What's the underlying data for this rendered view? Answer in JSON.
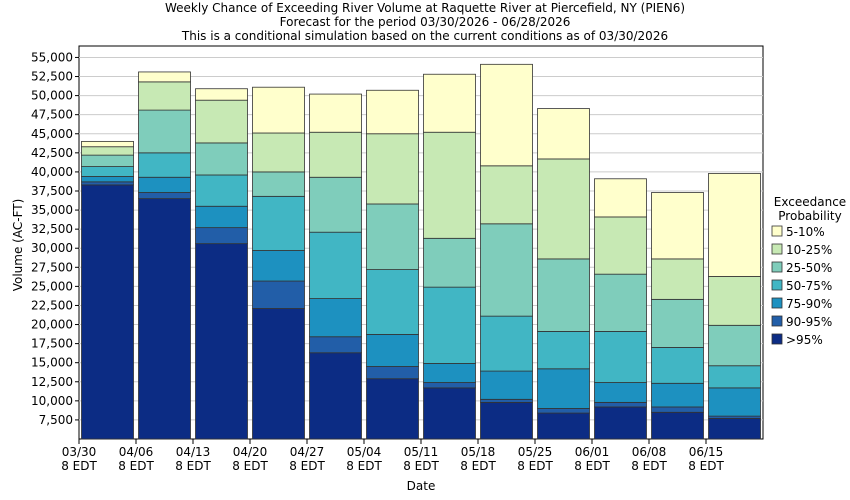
{
  "title": [
    "Weekly Chance of Exceeding River Volume at Raquette River at Piercefield, NY (PIEN6)",
    "Forecast for the period 03/30/2026 - 06/28/2026",
    "This is a conditional simulation based on the current conditions as of 03/30/2026"
  ],
  "chart_data": {
    "type": "bar",
    "stacked": true,
    "xlabel": "Date",
    "ylabel": "Volume (AC-FT)",
    "ylim": [
      5000,
      56500
    ],
    "yticks": [
      7500,
      10000,
      12500,
      15000,
      17500,
      20000,
      22500,
      25000,
      27500,
      30000,
      32500,
      35000,
      37500,
      40000,
      42500,
      45000,
      47500,
      50000,
      52500,
      55000
    ],
    "ytick_labels": [
      "7,500",
      "10,000",
      "12,500",
      "15,000",
      "17,500",
      "20,000",
      "22,500",
      "25,000",
      "27,500",
      "30,000",
      "32,500",
      "35,000",
      "37,500",
      "40,000",
      "42,500",
      "45,000",
      "47,500",
      "50,000",
      "52,500",
      "55,000"
    ],
    "xtick_labels": [
      [
        "03/30",
        "8 EDT"
      ],
      [
        "04/06",
        "8 EDT"
      ],
      [
        "04/13",
        "8 EDT"
      ],
      [
        "04/20",
        "8 EDT"
      ],
      [
        "04/27",
        "8 EDT"
      ],
      [
        "05/04",
        "8 EDT"
      ],
      [
        "05/11",
        "8 EDT"
      ],
      [
        "05/18",
        "8 EDT"
      ],
      [
        "05/25",
        "8 EDT"
      ],
      [
        "06/01",
        "8 EDT"
      ],
      [
        "06/08",
        "8 EDT"
      ],
      [
        "06/15",
        "8 EDT"
      ]
    ],
    "legend": {
      "title": [
        "Exceedance",
        "Probability"
      ],
      "position": "right",
      "entries": [
        "5-10%",
        "10-25%",
        "25-50%",
        "50-75%",
        "75-90%",
        "90-95%",
        ">95%"
      ]
    },
    "colors": [
      "#ffffcc",
      "#c7e9b4",
      "#7fcdbb",
      "#41b6c4",
      "#1d91c0",
      "#225ea8",
      "#0c2c84"
    ],
    "weeks": [
      "03/30",
      "04/06",
      "04/13",
      "04/20",
      "04/27",
      "05/04",
      "05/11",
      "05/18",
      "05/25",
      "06/01",
      "06/08",
      "06/15"
    ],
    "boundaries": [
      [
        5000,
        38300,
        38700,
        39400,
        40700,
        42200,
        43300,
        44000
      ],
      [
        5000,
        36500,
        37300,
        39300,
        42500,
        48100,
        51800,
        53100
      ],
      [
        5000,
        30600,
        32700,
        35500,
        39600,
        43800,
        49400,
        50900
      ],
      [
        5000,
        22100,
        25700,
        29700,
        36800,
        40000,
        45100,
        51100
      ],
      [
        5000,
        16300,
        18400,
        23400,
        32100,
        39300,
        45200,
        50200
      ],
      [
        5000,
        12900,
        14500,
        18700,
        27200,
        35800,
        45000,
        50700
      ],
      [
        5000,
        11700,
        12400,
        14900,
        24900,
        31300,
        45200,
        52800
      ],
      [
        5000,
        9800,
        10200,
        13900,
        21100,
        33200,
        40800,
        54100
      ],
      [
        5000,
        8400,
        9000,
        14200,
        19100,
        28600,
        41700,
        48300
      ],
      [
        5000,
        9200,
        9800,
        12400,
        19100,
        26600,
        34100,
        39100
      ],
      [
        5000,
        8500,
        9200,
        12300,
        17000,
        23300,
        28600,
        37300
      ],
      [
        5000,
        7700,
        8000,
        11700,
        14600,
        19900,
        26300,
        39800
      ]
    ]
  }
}
